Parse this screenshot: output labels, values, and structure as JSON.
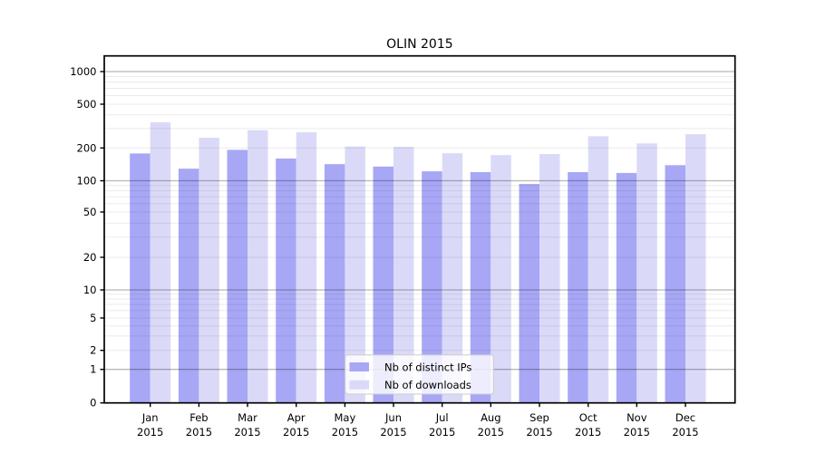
{
  "chart_data": {
    "type": "bar",
    "title": "OLIN 2015",
    "year": "2015",
    "categories": [
      "Jan",
      "Feb",
      "Mar",
      "Apr",
      "May",
      "Jun",
      "Jul",
      "Aug",
      "Sep",
      "Oct",
      "Nov",
      "Dec"
    ],
    "series": [
      {
        "name": "Nb of distinct IPs",
        "color": "#a7a7f6",
        "values": [
          178,
          129,
          192,
          160,
          142,
          135,
          122,
          120,
          93,
          120,
          118,
          139
        ]
      },
      {
        "name": "Nb of downloads",
        "color": "#dadaf8",
        "values": [
          342,
          248,
          290,
          278,
          206,
          205,
          179,
          172,
          176,
          256,
          220,
          267
        ]
      }
    ],
    "y_axis": {
      "scale": "symlog",
      "ticks": [
        0,
        1,
        2,
        5,
        10,
        20,
        50,
        100,
        200,
        500,
        1000
      ],
      "major_gridlines": [
        1,
        10,
        100,
        1000
      ],
      "minor_gridlines": [
        2,
        3,
        4,
        5,
        6,
        7,
        8,
        9,
        20,
        30,
        40,
        50,
        60,
        70,
        80,
        90,
        200,
        300,
        400,
        500,
        600,
        700,
        800,
        900
      ],
      "range_top": 1400
    },
    "legend": {
      "position": "lower center",
      "labels": [
        "Nb of distinct IPs",
        "Nb of downloads"
      ]
    },
    "colors": {
      "bar_dark": "#a7a7f6",
      "bar_light": "#dadaf8",
      "grid_major": "rgba(0,0,0,0.28)",
      "grid_minor": "rgba(0,0,0,0.08)",
      "axis": "#000000",
      "legend_border": "#cccccc",
      "legend_bg": "#ffffff"
    }
  }
}
